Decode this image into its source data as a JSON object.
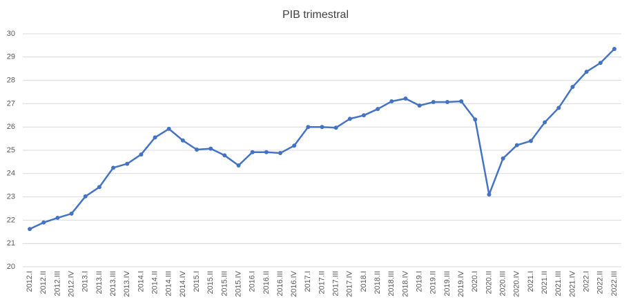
{
  "chart_data": {
    "type": "line",
    "title": "PIB trimestral",
    "categories": [
      "2012.I",
      "2012.II",
      "2012.III",
      "2012.IV",
      "2013.I",
      "2013.II",
      "2013.III",
      "2013.IV",
      "2014.I",
      "2014.II",
      "2014.III",
      "2014.IV",
      "2015.I",
      "2015.II",
      "2015.III",
      "2015.IV",
      "2016.I",
      "2016.II",
      "2016.III",
      "2016.IV",
      "2017.I",
      "2017.II",
      "2017.III",
      "2017.IV",
      "2018.I",
      "2018.II",
      "2018.III",
      "2018.IV",
      "2019.I",
      "2019.II",
      "2019.III",
      "2019.IV",
      "2020.I",
      "2020.II",
      "2020.III",
      "2020.IV",
      "2021.I",
      "2021.II",
      "2021.III",
      "2021.IV",
      "2022.I",
      "2022.II",
      "2022.III"
    ],
    "values": [
      21.62,
      21.9,
      22.1,
      22.28,
      23.02,
      23.42,
      24.25,
      24.42,
      24.82,
      25.55,
      25.92,
      25.42,
      25.03,
      25.07,
      24.78,
      24.35,
      24.92,
      24.92,
      24.88,
      25.2,
      26.0,
      26.0,
      25.97,
      26.35,
      26.5,
      26.77,
      27.1,
      27.22,
      26.92,
      27.07,
      27.07,
      27.1,
      26.32,
      23.1,
      24.65,
      25.22,
      25.4,
      26.2,
      26.82,
      27.72,
      28.37,
      28.75,
      29.35
    ],
    "color": "#4472c4",
    "ylim": [
      20,
      30
    ],
    "yticks": [
      20,
      21,
      22,
      23,
      24,
      25,
      26,
      27,
      28,
      29,
      30
    ],
    "grid": true
  }
}
